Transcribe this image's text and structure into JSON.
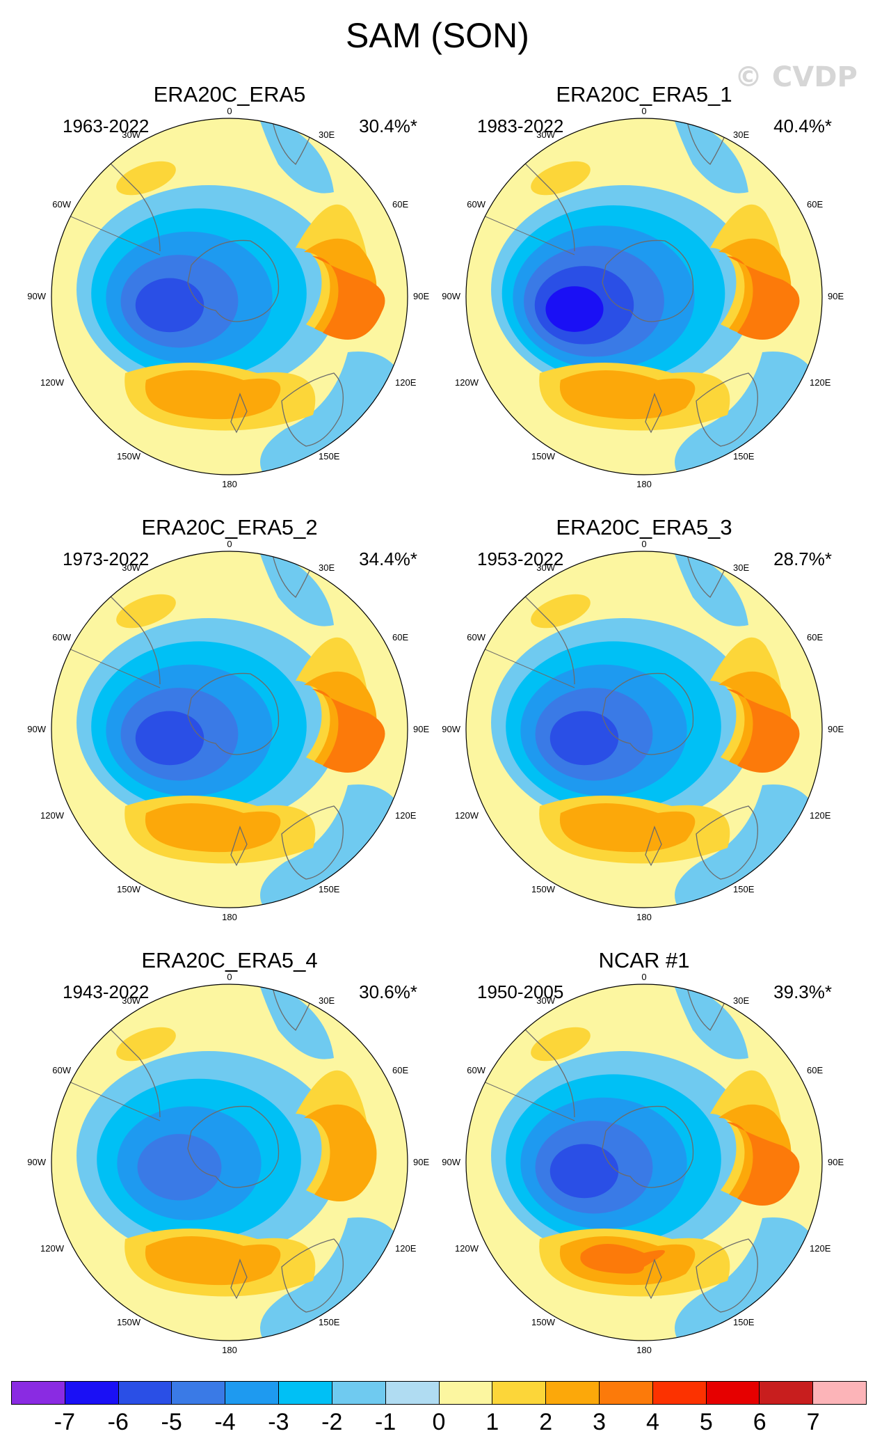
{
  "title": "SAM (SON)",
  "watermark": "© CVDP",
  "colors": {
    "land_outline": "#6b6b6b",
    "circle_outline": "#000000"
  },
  "geo_labels": {
    "top": "0",
    "bottom": "180",
    "left": "90W",
    "right": "90E",
    "tl1": "30W",
    "tl2": "60W",
    "tr1": "30E",
    "tr2": "60E",
    "bl1": "120W",
    "bl2": "150W",
    "br1": "120E",
    "br2": "150E"
  },
  "panels": [
    {
      "title": "ERA20C_ERA5",
      "years": "1963-2022",
      "pct": "30.4%*",
      "low_min": -5,
      "high1_max": 3,
      "high2_max": 2
    },
    {
      "title": "ERA20C_ERA5_1",
      "years": "1983-2022",
      "pct": "40.4%*",
      "low_min": -6,
      "high1_max": 3,
      "high2_max": 2
    },
    {
      "title": "ERA20C_ERA5_2",
      "years": "1973-2022",
      "pct": "34.4%*",
      "low_min": -5,
      "high1_max": 3,
      "high2_max": 2
    },
    {
      "title": "ERA20C_ERA5_3",
      "years": "1953-2022",
      "pct": "28.7%*",
      "low_min": -5,
      "high1_max": 3,
      "high2_max": 2
    },
    {
      "title": "ERA20C_ERA5_4",
      "years": "1943-2022",
      "pct": "30.6%*",
      "low_min": -4,
      "high1_max": 2,
      "high2_max": 2
    },
    {
      "title": "NCAR #1",
      "years": "1950-2005",
      "pct": "39.3%*",
      "low_min": -5,
      "high1_max": 3,
      "high2_max": 3
    }
  ],
  "colorbar": {
    "colors": [
      "#8a2be2",
      "#1a10f5",
      "#2a4fe6",
      "#3a7ae6",
      "#1e9af0",
      "#00c0f5",
      "#6fcaf0",
      "#b0dcf2",
      "#fcf6a0",
      "#fcd639",
      "#fca80a",
      "#fc7a0a",
      "#fc3200",
      "#e60000",
      "#c81e1e",
      "#fcb4b8"
    ],
    "labels": [
      "-7",
      "-6",
      "-5",
      "-4",
      "-3",
      "-2",
      "-1",
      "0",
      "1",
      "2",
      "3",
      "4",
      "5",
      "6",
      "7"
    ]
  }
}
